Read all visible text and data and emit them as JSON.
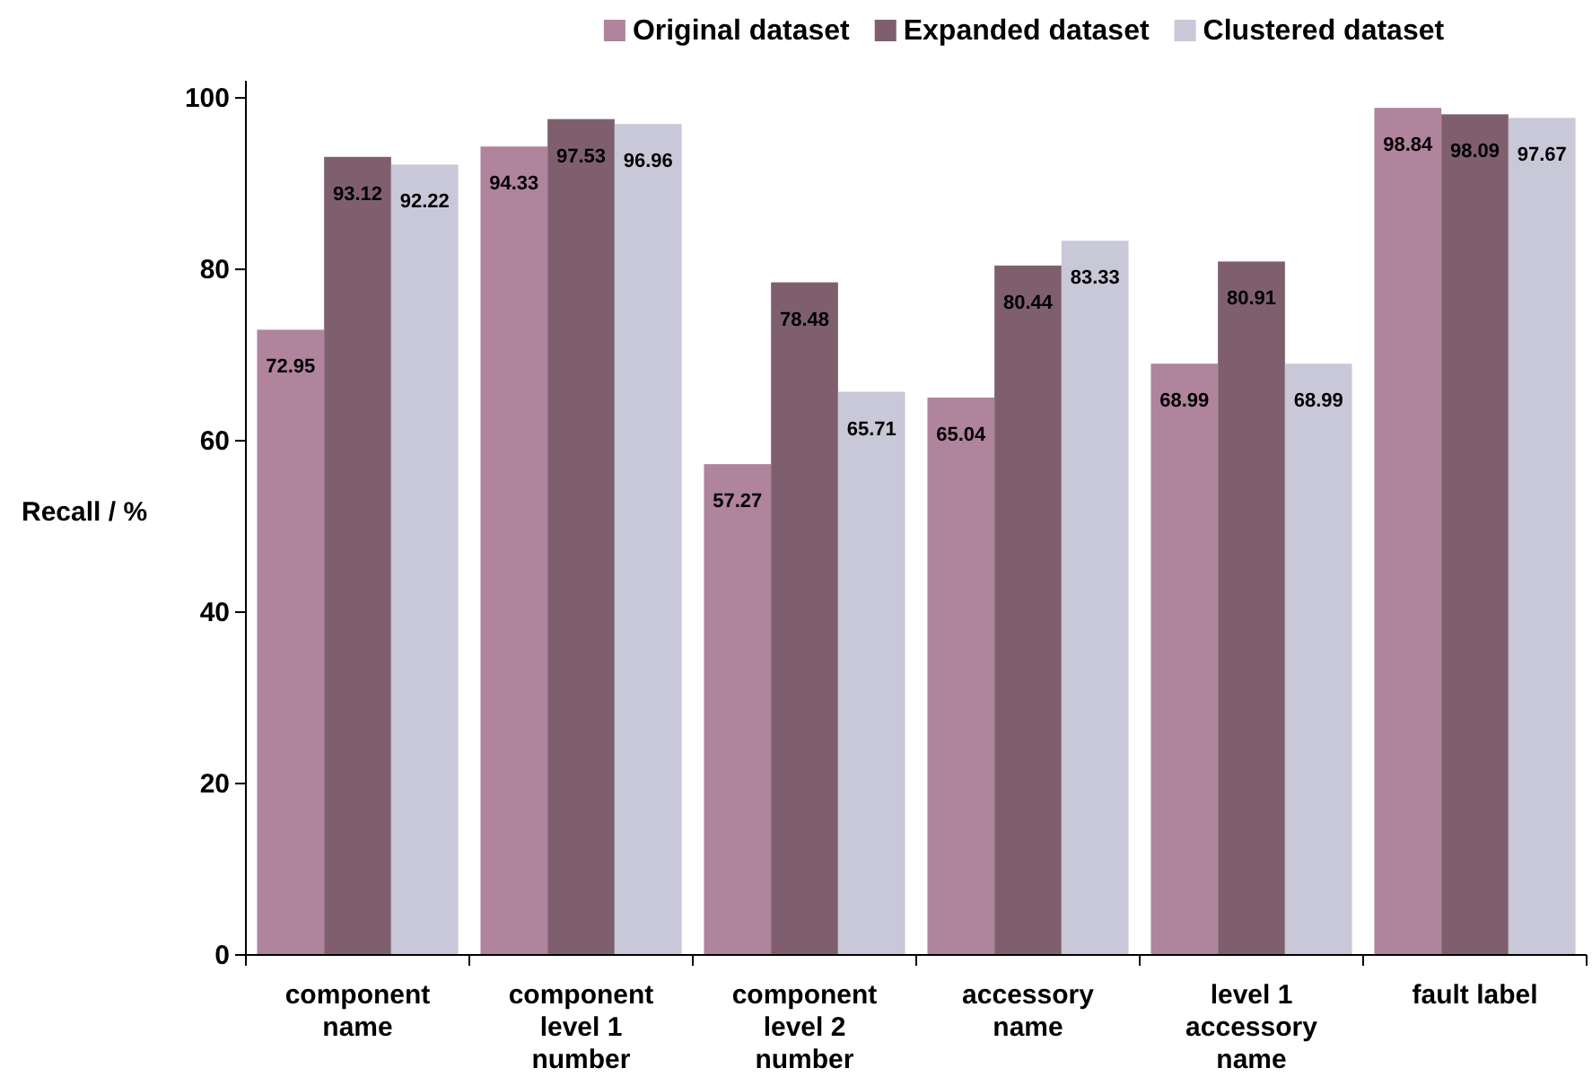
{
  "chart_data": {
    "type": "bar",
    "ylabel": "Recall / %",
    "categories": [
      "component name",
      "component level 1 number",
      "component level 2 number",
      "accessory name",
      "level 1 accessory name",
      "fault label"
    ],
    "series": [
      {
        "name": "Original dataset",
        "color": "#b0849c",
        "values": [
          72.95,
          94.33,
          57.27,
          65.04,
          68.99,
          98.84
        ]
      },
      {
        "name": "Expanded dataset",
        "color": "#7f5f6e",
        "values": [
          93.12,
          97.53,
          78.48,
          80.44,
          80.91,
          98.09
        ]
      },
      {
        "name": "Clustered dataset",
        "color": "#c9c8d9",
        "values": [
          92.22,
          96.96,
          65.71,
          83.33,
          68.99,
          97.67
        ]
      }
    ],
    "ylim": [
      0,
      102
    ],
    "yticks": [
      0,
      20,
      40,
      60,
      80,
      100
    ],
    "data_labels": true,
    "legend": "top",
    "grid": false
  }
}
